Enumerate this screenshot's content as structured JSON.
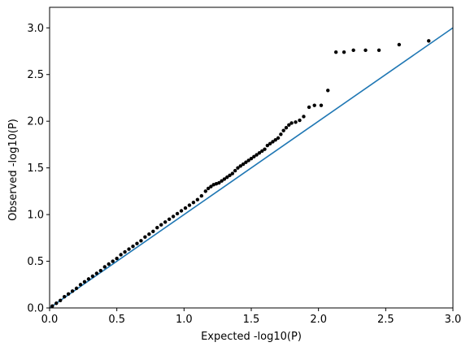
{
  "chart_data": {
    "type": "scatter",
    "title": "",
    "xlabel": "Expected -log10(P)",
    "ylabel": "Observed -log10(P)",
    "xlim": [
      0.0,
      3.0
    ],
    "ylim": [
      0.0,
      3.22
    ],
    "xticks": [
      "0.0",
      "0.5",
      "1.0",
      "1.5",
      "2.0",
      "2.5",
      "3.0"
    ],
    "yticks": [
      "0.0",
      "0.5",
      "1.0",
      "1.5",
      "2.0",
      "2.5",
      "3.0"
    ],
    "grid": false,
    "reference_line": {
      "x": [
        0.0,
        3.0
      ],
      "y": [
        0.0,
        3.0
      ],
      "color": "#1f77b4"
    },
    "points_color": "#000000",
    "series": [
      {
        "x": [
          0.02,
          0.05,
          0.08,
          0.11,
          0.14,
          0.17,
          0.2,
          0.23,
          0.26,
          0.29,
          0.32,
          0.35,
          0.38,
          0.41,
          0.44,
          0.47,
          0.5,
          0.53,
          0.56,
          0.59,
          0.62,
          0.65,
          0.68,
          0.71,
          0.74,
          0.77,
          0.8,
          0.83,
          0.86,
          0.89,
          0.92,
          0.95,
          0.98,
          1.01,
          1.04,
          1.07,
          1.1,
          1.13,
          1.16,
          1.18,
          1.2,
          1.22,
          1.24,
          1.26,
          1.28,
          1.3,
          1.32,
          1.34,
          1.36,
          1.38,
          1.4,
          1.42,
          1.44,
          1.46,
          1.48,
          1.5,
          1.52,
          1.54,
          1.56,
          1.58,
          1.6,
          1.62,
          1.64,
          1.66,
          1.68,
          1.7,
          1.72,
          1.74,
          1.76,
          1.78,
          1.8,
          1.83,
          1.86,
          1.89,
          1.93,
          1.97,
          2.02,
          2.07,
          2.13,
          2.19,
          2.26,
          2.35,
          2.45,
          2.6,
          2.82
        ],
        "y": [
          0.02,
          0.05,
          0.08,
          0.12,
          0.15,
          0.18,
          0.21,
          0.25,
          0.28,
          0.31,
          0.34,
          0.37,
          0.4,
          0.44,
          0.47,
          0.5,
          0.53,
          0.57,
          0.6,
          0.63,
          0.66,
          0.69,
          0.72,
          0.76,
          0.79,
          0.82,
          0.86,
          0.89,
          0.92,
          0.95,
          0.98,
          1.01,
          1.04,
          1.07,
          1.1,
          1.13,
          1.16,
          1.2,
          1.25,
          1.28,
          1.3,
          1.32,
          1.33,
          1.34,
          1.36,
          1.38,
          1.4,
          1.42,
          1.44,
          1.47,
          1.5,
          1.52,
          1.54,
          1.56,
          1.58,
          1.6,
          1.62,
          1.64,
          1.66,
          1.68,
          1.7,
          1.74,
          1.76,
          1.78,
          1.8,
          1.82,
          1.86,
          1.9,
          1.93,
          1.96,
          1.98,
          1.99,
          2.01,
          2.05,
          2.15,
          2.17,
          2.17,
          2.33,
          2.74,
          2.74,
          2.76,
          2.76,
          2.76,
          2.82,
          2.86
        ]
      }
    ]
  }
}
